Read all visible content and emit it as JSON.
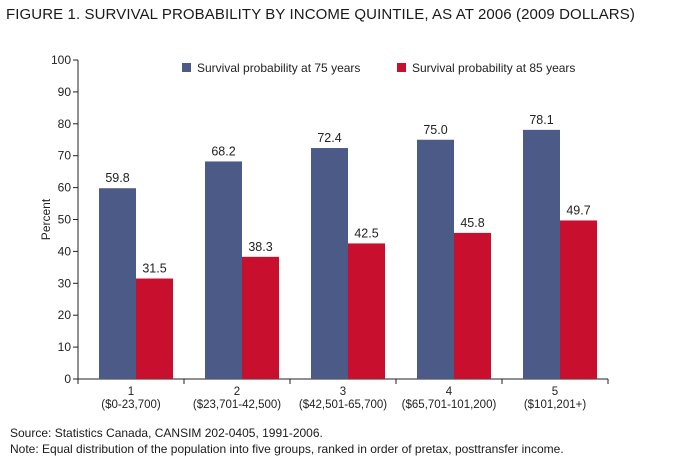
{
  "figure_title": "FIGURE 1. SURVIVAL PROBABILITY BY INCOME QUINTILE, AS AT 2006 (2009 DOLLARS)",
  "source": "Source: Statistics Canada, CANSIM 202-0405, 1991-2006.",
  "note": "Note: Equal distribution of the population into five groups, ranked in order of pretax, posttransfer income.",
  "colors": {
    "series1": "#4b5a86",
    "series2": "#c8102e"
  },
  "chart_data": {
    "type": "bar",
    "title": "FIGURE 1. SURVIVAL PROBABILITY BY INCOME QUINTILE, AS AT 2006 (2009 DOLLARS)",
    "xlabel": "",
    "ylabel": "Percent",
    "ylim": [
      0,
      100
    ],
    "yticks": [
      0,
      10,
      20,
      30,
      40,
      50,
      60,
      70,
      80,
      90,
      100
    ],
    "grid": false,
    "legend_position": "top",
    "categories": [
      {
        "line1": "1",
        "line2": "($0-23,700)"
      },
      {
        "line1": "2",
        "line2": "($23,701-42,500)"
      },
      {
        "line1": "3",
        "line2": "($42,501-65,700)"
      },
      {
        "line1": "4",
        "line2": "($65,701-101,200)"
      },
      {
        "line1": "5",
        "line2": "($101,201+)"
      }
    ],
    "series": [
      {
        "name": "Survival probability at 75 years",
        "color": "#4b5a86",
        "values": [
          59.8,
          68.2,
          72.4,
          75.0,
          78.1
        ],
        "labels": [
          "59.8",
          "68.2",
          "72.4",
          "75.0",
          "78.1"
        ]
      },
      {
        "name": "Survival probability at 85 years",
        "color": "#c8102e",
        "values": [
          31.5,
          38.3,
          42.5,
          45.8,
          49.7
        ],
        "labels": [
          "31.5",
          "38.3",
          "42.5",
          "45.8",
          "49.7"
        ]
      }
    ]
  }
}
